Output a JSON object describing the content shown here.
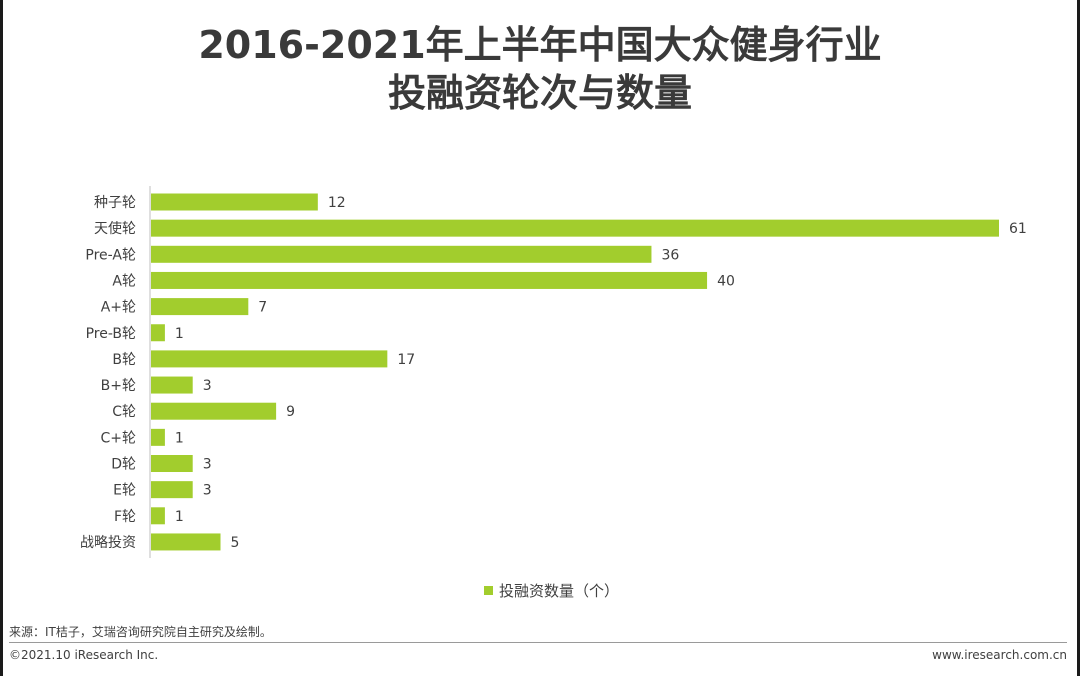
{
  "title_line1": "2016-2021年上半年中国大众健身行业",
  "title_line2": "投融资轮次与数量",
  "legend_label": "投融资数量（个）",
  "source": "来源：IT桔子，艾瑞咨询研究院自主研究及绘制。",
  "copyright": "©2021.10 iResearch Inc.",
  "website": "www.iresearch.com.cn",
  "bar_color": "#a2cd2d",
  "chart_data": {
    "type": "bar",
    "orientation": "horizontal",
    "categories": [
      "种子轮",
      "天使轮",
      "Pre-A轮",
      "A轮",
      "A+轮",
      "Pre-B轮",
      "B轮",
      "B+轮",
      "C轮",
      "C+轮",
      "D轮",
      "E轮",
      "F轮",
      "战略投资"
    ],
    "series": [
      {
        "name": "投融资数量（个）",
        "values": [
          12,
          61,
          36,
          40,
          7,
          1,
          17,
          3,
          9,
          1,
          3,
          3,
          1,
          5
        ]
      }
    ],
    "xlim": [
      0,
      61
    ],
    "grid": false,
    "legend_position": "bottom"
  }
}
